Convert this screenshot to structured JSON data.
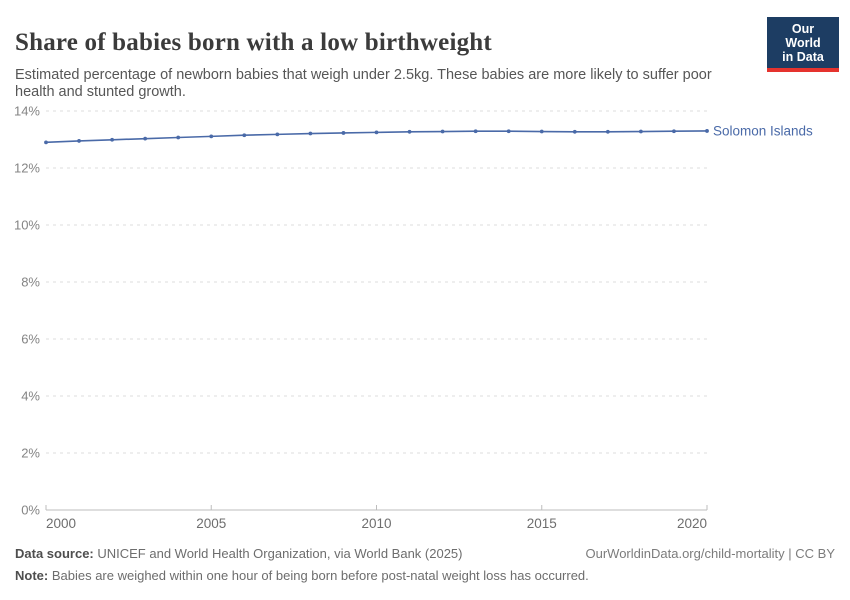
{
  "header": {
    "title": "Share of babies born with a low birthweight",
    "subtitle": "Estimated percentage of newborn babies that weigh under 2.5kg. These babies are more likely to suffer poor health and stunted growth.",
    "logo": {
      "line1": "Our World",
      "line2": "in Data",
      "background_color": "#1d3d63",
      "accent_color": "#e5332e"
    }
  },
  "chart_data": {
    "type": "line",
    "title": "Share of babies born with a low birthweight",
    "x": [
      2000,
      2001,
      2002,
      2003,
      2004,
      2005,
      2006,
      2007,
      2008,
      2009,
      2010,
      2011,
      2012,
      2013,
      2014,
      2015,
      2016,
      2017,
      2018,
      2019,
      2020
    ],
    "series": [
      {
        "name": "Solomon Islands",
        "color": "#4a6aa8",
        "values": [
          12.9,
          12.95,
          12.99,
          13.03,
          13.07,
          13.11,
          13.15,
          13.18,
          13.21,
          13.23,
          13.25,
          13.27,
          13.28,
          13.29,
          13.29,
          13.28,
          13.27,
          13.27,
          13.28,
          13.29,
          13.3
        ]
      }
    ],
    "xlim": [
      2000,
      2020
    ],
    "ylim": [
      0,
      14
    ],
    "x_ticks": [
      2000,
      2005,
      2010,
      2015,
      2020
    ],
    "y_ticks": [
      0,
      2,
      4,
      6,
      8,
      10,
      12,
      14
    ],
    "y_tick_suffix": "%",
    "xlabel": "",
    "ylabel": "",
    "grid": "horizontal-dashed",
    "legend": "line-end-label",
    "colors": {
      "grid": "#dcdcdc",
      "axis": "#bdbdbd",
      "y_tick_label": "#848484",
      "x_tick_label": "#6e6e6e"
    }
  },
  "footer": {
    "source_label": "Data source:",
    "source_text": " UNICEF and World Health Organization, via World Bank (2025)",
    "link": "OurWorldinData.org/child-mortality | CC BY",
    "note_label": "Note:",
    "note_text": " Babies are weighed within one hour of being born before post-natal weight loss has occurred."
  }
}
